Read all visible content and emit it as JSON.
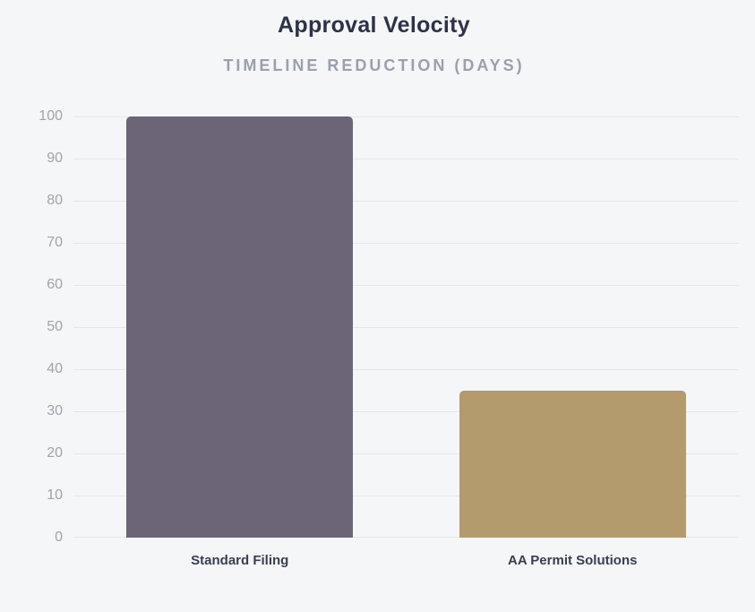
{
  "chart_data": {
    "type": "bar",
    "title": "Approval Velocity",
    "subtitle": "TIMELINE REDUCTION (DAYS)",
    "categories": [
      "Standard Filing",
      "AA Permit Solutions"
    ],
    "values": [
      100,
      35
    ],
    "bar_colors": [
      "#6b6577",
      "#b49b6d"
    ],
    "xlabel": "",
    "ylabel": "",
    "ylim": [
      0,
      100
    ],
    "ytick_step": 10,
    "grid": true,
    "legend": false
  },
  "colors": {
    "background": "#f5f6f8",
    "title": "#2d3247",
    "subtitle": "#9aa0ac",
    "tick_label": "#a2a3aa",
    "gridline": "#e6e7ea",
    "category_label": "#383e50"
  }
}
